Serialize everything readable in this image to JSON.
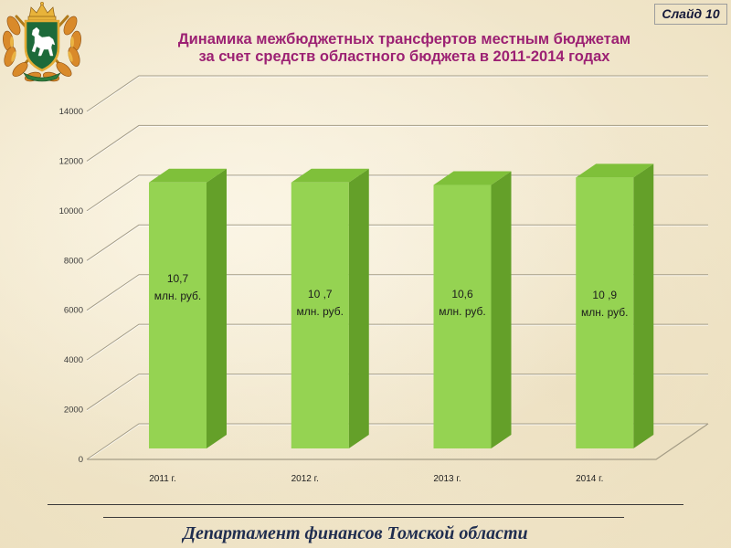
{
  "slide": {
    "number_label": "Слайд 10",
    "title_lines": [
      "Динамика межбюджетных трансфертов местным бюджетам",
      "за счет средств областного бюджета в 2011-2014 годах"
    ],
    "footer": "Департамент финансов Томской области"
  },
  "logo": {
    "icon": "tomsk-coat-of-arms-icon"
  },
  "colors": {
    "title": "#9c2173",
    "footer": "#1f2d4f",
    "background": "#f3e9cf"
  },
  "chart_data": {
    "type": "bar",
    "three_d": true,
    "categories": [
      "2011 г.",
      "2012 г.",
      "2013 г.",
      "2014 г."
    ],
    "values": [
      10700,
      10700,
      10600,
      10900
    ],
    "data_labels": [
      {
        "value": "10,7",
        "unit": "млн. руб."
      },
      {
        "value": "10 ,7",
        "unit": "млн. руб."
      },
      {
        "value": "10,6",
        "unit": "млн. руб."
      },
      {
        "value": "10 ,9",
        "unit": "млн. руб."
      }
    ],
    "yticks": [
      0,
      2000,
      4000,
      6000,
      8000,
      10000,
      12000,
      14000
    ],
    "ylim": [
      0,
      14000
    ],
    "grid": true,
    "legend": "none",
    "colors": {
      "front": "#95d352",
      "top": "#7fc03a",
      "side": "#64a029"
    }
  }
}
